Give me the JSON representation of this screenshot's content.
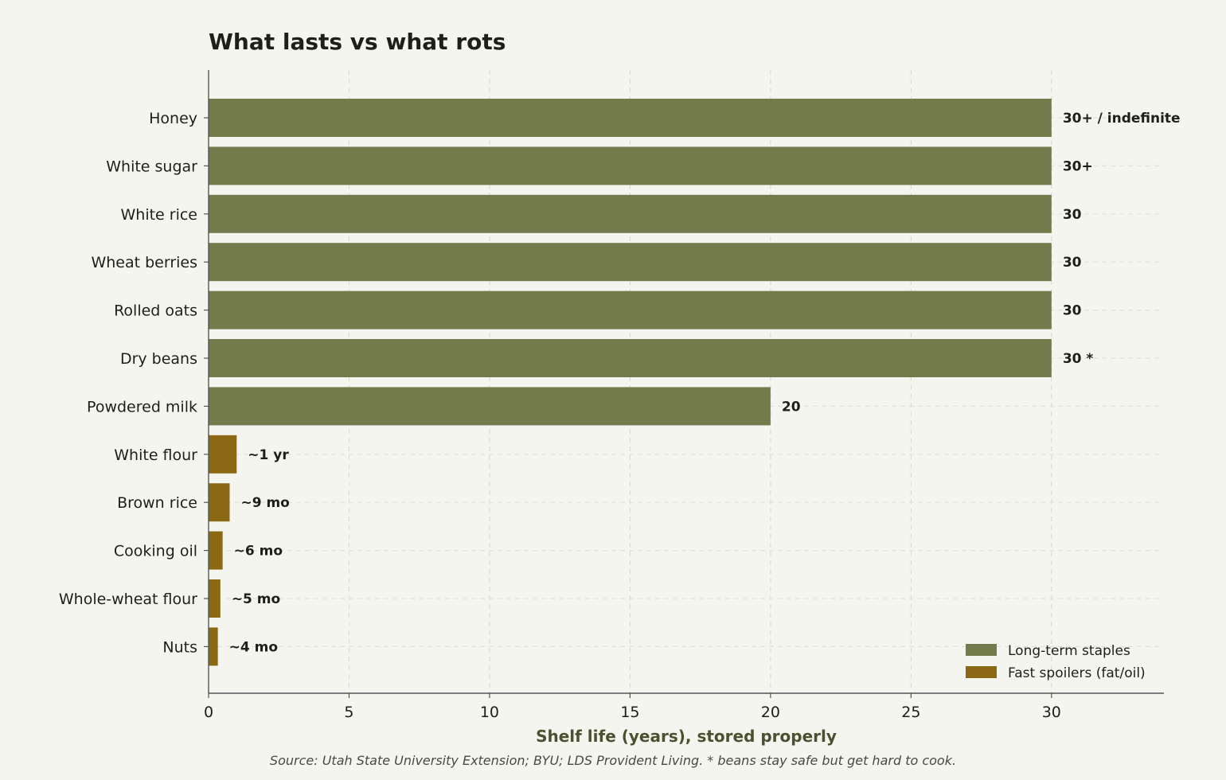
{
  "chart_data": {
    "type": "bar",
    "orientation": "horizontal",
    "title": "What lasts vs what rots",
    "xlabel": "Shelf life (years), stored properly",
    "ylabel": "",
    "xlim": [
      0,
      34
    ],
    "xticks": [
      0,
      5,
      10,
      15,
      20,
      25,
      30
    ],
    "grid": true,
    "legend_position": "bottom-right",
    "categories": [
      "Honey",
      "White sugar",
      "White rice",
      "Wheat berries",
      "Rolled oats",
      "Dry beans",
      "Powdered milk",
      "White flour",
      "Brown rice",
      "Cooking oil",
      "Whole-wheat flour",
      "Nuts"
    ],
    "values": [
      30,
      30,
      30,
      30,
      30,
      30,
      20,
      1,
      0.75,
      0.5,
      0.42,
      0.33
    ],
    "value_labels": [
      "30+ / indefinite",
      "30+",
      "30",
      "30",
      "30",
      "30 *",
      "20",
      "~1 yr",
      "~9 mo",
      "~6 mo",
      "~5 mo",
      "~4 mo"
    ],
    "groups": [
      "Long-term staples",
      "Long-term staples",
      "Long-term staples",
      "Long-term staples",
      "Long-term staples",
      "Long-term staples",
      "Long-term staples",
      "Fast spoilers (fat/oil)",
      "Fast spoilers (fat/oil)",
      "Fast spoilers (fat/oil)",
      "Fast spoilers (fat/oil)",
      "Fast spoilers (fat/oil)"
    ],
    "legend": [
      {
        "name": "Long-term staples",
        "color": "#737b4c"
      },
      {
        "name": "Fast spoilers (fat/oil)",
        "color": "#8b6914"
      }
    ]
  },
  "source_note": "Source: Utah State University Extension; BYU; LDS Provident Living.  * beans stay safe but get hard to cook."
}
